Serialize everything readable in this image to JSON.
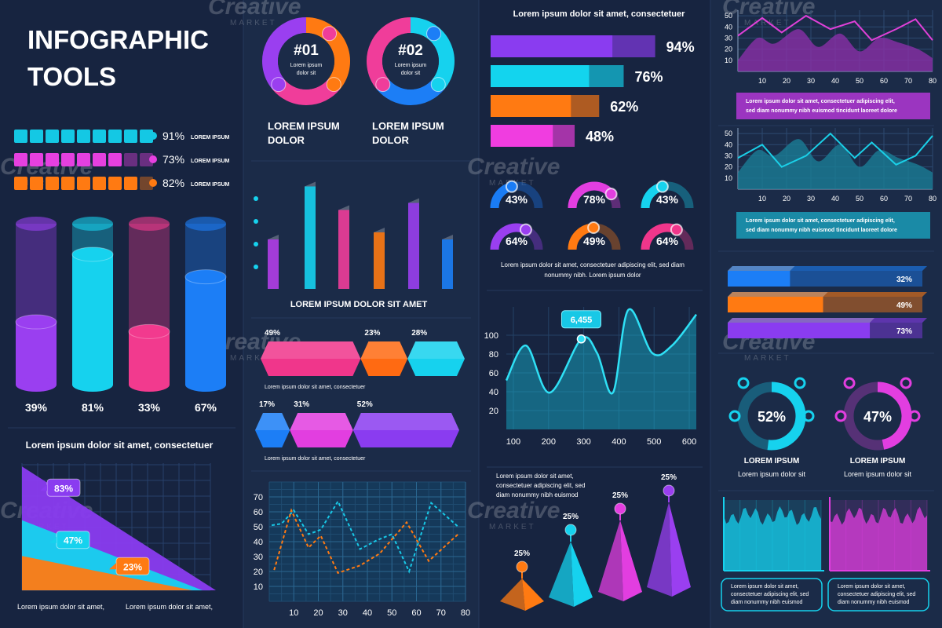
{
  "watermark": {
    "word": "Creative",
    "sub": "MARKET"
  },
  "title": [
    "INFOGRAPHIC",
    "TOOLS"
  ],
  "progress": [
    {
      "value": 91,
      "label": "91%",
      "caption": "LOREM IPSUM",
      "color": "#14c8e4"
    },
    {
      "value": 73,
      "label": "73%",
      "caption": "LOREM IPSUM",
      "color": "#e540e0"
    },
    {
      "value": 82,
      "label": "82%",
      "caption": "LOREM IPSUM",
      "color": "#ff7a12"
    }
  ],
  "cylinders": [
    {
      "value": 39,
      "label": "39%",
      "color": "#9a3ff0"
    },
    {
      "value": 81,
      "label": "81%",
      "color": "#16d2ee"
    },
    {
      "value": 33,
      "label": "33%",
      "color": "#f23a8e"
    },
    {
      "value": 67,
      "label": "67%",
      "color": "#1c7ef6"
    }
  ],
  "triangle_chart": {
    "title": "Lorem ipsum dolor sit amet, consectetuer",
    "layers": [
      {
        "value": 83,
        "label": "83%",
        "color": "#8a3cf0"
      },
      {
        "value": 47,
        "label": "47%",
        "color": "#16d2ee"
      },
      {
        "value": 23,
        "label": "23%",
        "color": "#ff7a12"
      }
    ],
    "footer": [
      "Lorem ipsum dolor sit amet,",
      "Lorem ipsum dolor sit amet,"
    ]
  },
  "donuts": [
    {
      "number": "#01",
      "text": [
        "Lorem ipsum",
        "dolor sit"
      ],
      "caption": [
        "LOREM IPSUM",
        "DOLOR"
      ],
      "colors": [
        "#ff7a12",
        "#f03d9a",
        "#9a3ff0"
      ]
    },
    {
      "number": "#02",
      "text": [
        "Lorem ipsum",
        "dolor sit"
      ],
      "caption": [
        "LOREM IPSUM",
        "DOLOR"
      ],
      "colors": [
        "#16d2ee",
        "#1c7ef6",
        "#f03d9a"
      ]
    }
  ],
  "column_chart": {
    "title": "LOREM IPSUM DOLOR SIT AMET",
    "values": [
      42,
      87,
      67,
      48,
      73,
      42
    ],
    "colors": [
      "#b23ee8",
      "#16d2ee",
      "#f03d9a",
      "#ff7a12",
      "#9a3ff0",
      "#1c7ef6"
    ]
  },
  "segment_rows": [
    {
      "segments": [
        {
          "value": 49,
          "label": "49%",
          "color": "#f0368b"
        },
        {
          "value": 23,
          "label": "23%",
          "color": "#ff6a12"
        },
        {
          "value": 28,
          "label": "28%",
          "color": "#16d2ee"
        }
      ],
      "caption": "Lorem ipsum dolor sit amet, consectetuer"
    },
    {
      "segments": [
        {
          "value": 17,
          "label": "17%",
          "color": "#1c7ef6"
        },
        {
          "value": 31,
          "label": "31%",
          "color": "#e23ee0"
        },
        {
          "value": 52,
          "label": "52%",
          "color": "#8a3cf0"
        }
      ],
      "caption": "Lorem ipsum dolor sit amet, consectetuer"
    }
  ],
  "line_chart": {
    "xlim": [
      0,
      80
    ],
    "ylim": [
      0,
      80
    ],
    "xticks": [
      10,
      20,
      30,
      40,
      50,
      60,
      70,
      80
    ],
    "yticks": [
      10,
      20,
      30,
      40,
      50,
      60,
      70
    ],
    "series": [
      {
        "color": "#18c8e6",
        "x": [
          1,
          5,
          10,
          16,
          21,
          28,
          37,
          44,
          50,
          57,
          66,
          77
        ],
        "values": [
          51,
          52,
          61,
          45,
          48,
          67,
          35,
          41,
          45,
          20,
          66,
          50
        ]
      },
      {
        "color": "#ff7a12",
        "x": [
          2,
          9,
          16,
          21,
          28,
          37,
          45,
          56,
          65,
          77
        ],
        "values": [
          21,
          61,
          36,
          44,
          19,
          24,
          32,
          53,
          27,
          45
        ]
      }
    ]
  },
  "hbar_chart": {
    "title": "Lorem ipsum dolor sit amet, consectetuer",
    "xlim": [
      0,
      100
    ],
    "bars": [
      {
        "value": 94,
        "label": "94%",
        "color": "#8a3cf0"
      },
      {
        "value": 76,
        "label": "76%",
        "color": "#13d4ee"
      },
      {
        "value": 62,
        "label": "62%",
        "color": "#ff7a12"
      },
      {
        "value": 48,
        "label": "48%",
        "color": "#f03de0"
      }
    ]
  },
  "gauges": {
    "items": [
      {
        "value": 43,
        "label": "43%",
        "color": "#1a7cf5"
      },
      {
        "value": 78,
        "label": "78%",
        "color": "#e23ee0"
      },
      {
        "value": 43,
        "label": "43%",
        "color": "#16d2ee"
      },
      {
        "value": 64,
        "label": "64%",
        "color": "#9a3ff0"
      },
      {
        "value": 49,
        "label": "49%",
        "color": "#ff7a12"
      },
      {
        "value": 64,
        "label": "64%",
        "color": "#f0368b"
      }
    ],
    "caption": [
      "Lorem ipsum dolor sit amet, consectetuer adipiscing elit, sed diam",
      "nonummy nibh. Lorem ipsum dolor"
    ]
  },
  "area_chart": {
    "xlim": [
      80,
      620
    ],
    "ylim": [
      0,
      130
    ],
    "xticks": [
      100,
      200,
      300,
      400,
      500,
      600
    ],
    "yticks": [
      20,
      40,
      60,
      80,
      100
    ],
    "x": [
      80,
      136,
      203,
      293,
      338,
      383,
      427,
      495,
      551,
      620
    ],
    "values": [
      52,
      89,
      39,
      96,
      81,
      39,
      127,
      81,
      89,
      122
    ],
    "callout": "6,455",
    "color": "#16b9d2"
  },
  "pyramids": {
    "text": [
      "Lorem ipsum dolor sit amet,",
      "consectetuer adipiscing elit, sed",
      "diam nonummy nibh euismod"
    ],
    "items": [
      {
        "label": "25%",
        "color": "#ff7a12"
      },
      {
        "label": "25%",
        "color": "#16d2ee"
      },
      {
        "label": "25%",
        "color": "#e23ee0"
      },
      {
        "label": "25%",
        "color": "#9a3ff0"
      }
    ]
  },
  "mini_charts": [
    {
      "xlim": [
        0,
        80
      ],
      "ylim": [
        0,
        55
      ],
      "xticks": [
        10,
        20,
        30,
        40,
        50,
        60,
        70,
        80
      ],
      "yticks": [
        10,
        20,
        30,
        40,
        50
      ],
      "line": {
        "color": "#e040d8",
        "x": [
          0,
          10,
          18,
          28,
          38,
          48,
          55,
          65,
          73,
          80
        ],
        "values": [
          32,
          48,
          35,
          50,
          38,
          45,
          28,
          38,
          47,
          28
        ]
      },
      "area": {
        "color": "#8a2fa8",
        "x": [
          0,
          8,
          15,
          25,
          33,
          42,
          50,
          58,
          66,
          74,
          80
        ],
        "values": [
          10,
          30,
          25,
          38,
          22,
          34,
          18,
          30,
          26,
          20,
          12
        ]
      },
      "caption": [
        "Lorem ipsum dolor sit amet, consectetuer adipiscing elit,",
        "sed diam nonummy nibh euismod tincidunt laoreet dolore"
      ],
      "caption_color": "#9b35c0"
    },
    {
      "xlim": [
        0,
        80
      ],
      "ylim": [
        0,
        55
      ],
      "xticks": [
        10,
        20,
        30,
        40,
        50,
        60,
        70,
        80
      ],
      "yticks": [
        10,
        20,
        30,
        40,
        50
      ],
      "line": {
        "color": "#1ad0e8",
        "x": [
          0,
          10,
          18,
          28,
          38,
          48,
          55,
          65,
          73,
          80
        ],
        "values": [
          28,
          40,
          20,
          30,
          50,
          28,
          42,
          22,
          30,
          48
        ]
      },
      "area": {
        "color": "#1a7d96",
        "x": [
          0,
          8,
          15,
          25,
          33,
          42,
          50,
          58,
          66,
          74,
          80
        ],
        "values": [
          15,
          35,
          30,
          45,
          25,
          40,
          20,
          35,
          28,
          22,
          15
        ]
      },
      "caption": [
        "Lorem ipsum dolor sit amet, consectetuer adipiscing elit,",
        "sed diam nonummy nibh euismod tincidunt laoreet dolore"
      ],
      "caption_color": "#1a8aa6"
    }
  ],
  "bars_3d": [
    {
      "value": 32,
      "label": "32%",
      "color": "#1c7ef6"
    },
    {
      "value": 49,
      "label": "49%",
      "color": "#ff7a12"
    },
    {
      "value": 73,
      "label": "73%",
      "color": "#8a3cf0"
    }
  ],
  "rings": [
    {
      "value": 52,
      "label": "52%",
      "color": "#16d2ee",
      "title": "LOREM IPSUM",
      "text": "Lorem ipsum dolor sit"
    },
    {
      "value": 47,
      "label": "47%",
      "color": "#e23ee0",
      "title": "LOREM IPSUM",
      "text": "Lorem ipsum dolor sit"
    }
  ],
  "signal_boxes": [
    {
      "color": "#16d2ee",
      "caption": [
        "Lorem ipsum dolor sit amet,",
        "consectetuer adipiscing elit, sed",
        "diam nonummy nibh euismod"
      ]
    },
    {
      "color": "#e23ee0",
      "caption": [
        "Lorem ipsum dolor sit amet,",
        "consectetuer adipiscing elit, sed",
        "diam nonummy nibh euismod"
      ]
    }
  ]
}
